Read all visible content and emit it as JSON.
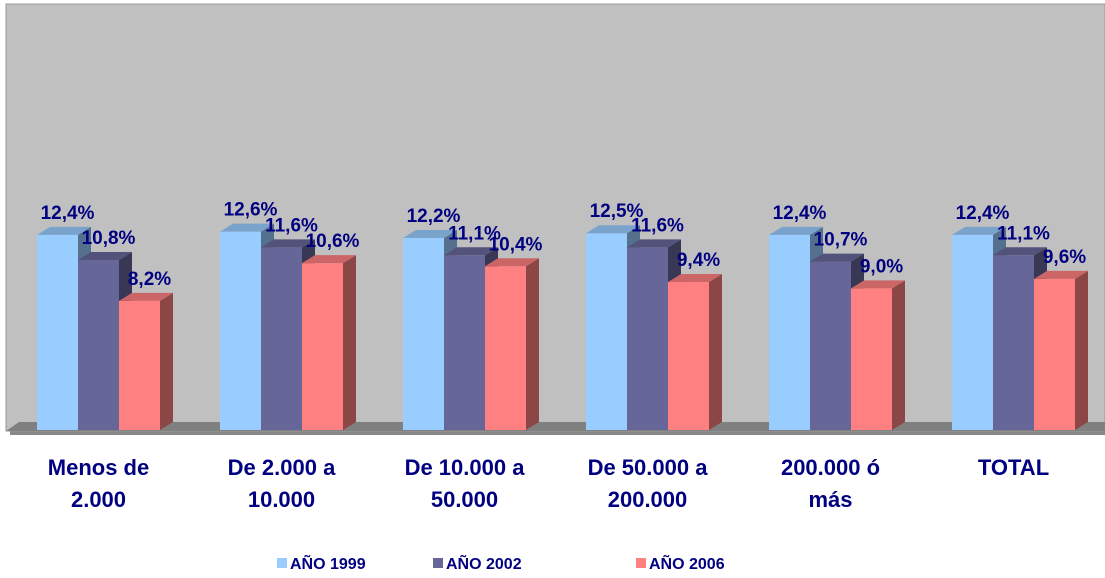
{
  "chart_data": {
    "type": "bar",
    "categories": [
      "Menos de\n2.000",
      "De 2.000 a\n10.000",
      "De 10.000 a\n50.000",
      "De 50.000 a\n200.000",
      "200.000 ó\nmás",
      "TOTAL"
    ],
    "series": [
      {
        "name": "AÑO 1999",
        "color": "#99ccff",
        "values": [
          12.4,
          12.6,
          12.2,
          12.5,
          12.4,
          12.4
        ],
        "value_labels": [
          "12,4%",
          "12,6%",
          "12,2%",
          "12,5%",
          "12,4%",
          "12,4%"
        ]
      },
      {
        "name": "AÑO 2002",
        "color": "#666699",
        "values": [
          10.8,
          11.6,
          11.1,
          11.6,
          10.7,
          11.1
        ],
        "value_labels": [
          "10,8%",
          "11,6%",
          "11,1%",
          "11,6%",
          "10,7%",
          "11,1%"
        ]
      },
      {
        "name": "AÑO 2006",
        "color": "#ff8080",
        "values": [
          8.2,
          10.6,
          10.4,
          9.4,
          9.0,
          9.6
        ],
        "value_labels": [
          "8,2%",
          "10,6%",
          "10,4%",
          "9,4%",
          "9,0%",
          "9,6%"
        ]
      }
    ],
    "ylim": [
      0,
      27
    ]
  }
}
